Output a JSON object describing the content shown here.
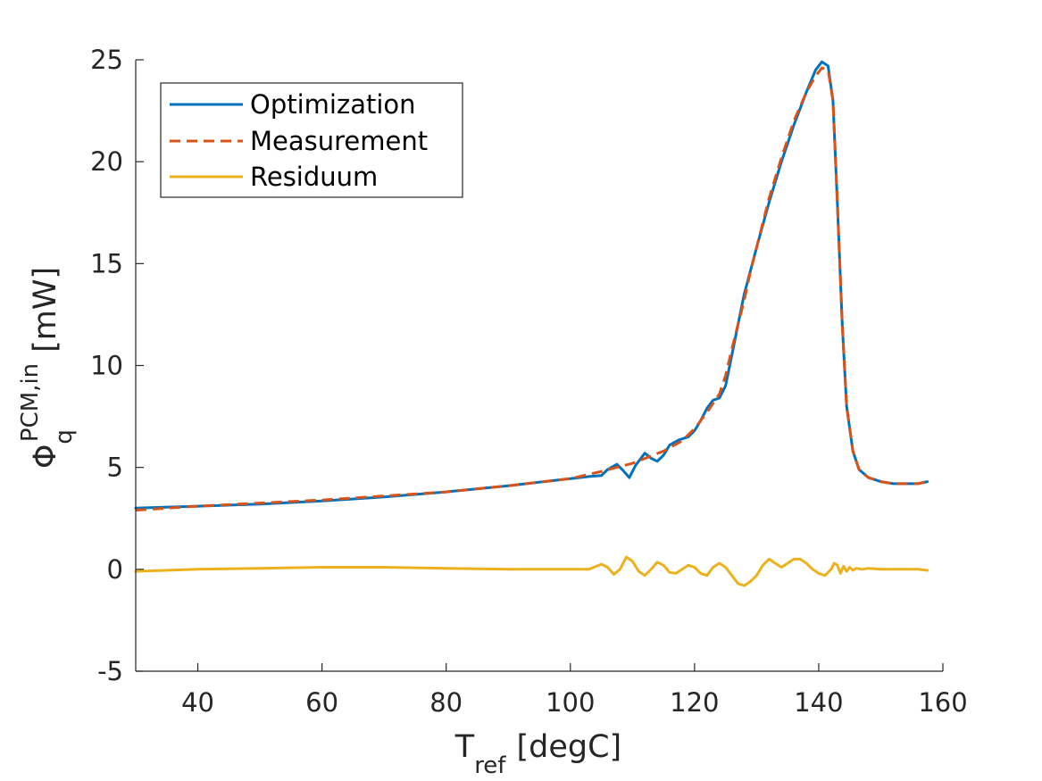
{
  "chart_data": {
    "type": "line",
    "xlabel": {
      "main": "T",
      "sub": "ref",
      "unit": "[degC]"
    },
    "ylabel": {
      "main": "Φ",
      "sub": "q",
      "sup": "PCM,in",
      "unit": "[mW]"
    },
    "xlim": [
      30,
      160
    ],
    "ylim": [
      -5,
      25
    ],
    "xticks": [
      "40",
      "60",
      "80",
      "100",
      "120",
      "140",
      "160"
    ],
    "yticks": [
      "-5",
      "0",
      "5",
      "10",
      "15",
      "20",
      "25"
    ],
    "legend_position": "top-left",
    "series": [
      {
        "name": "Optimization",
        "color": "#0072BD",
        "style": "solid",
        "points": [
          [
            30,
            3.0
          ],
          [
            40,
            3.1
          ],
          [
            50,
            3.2
          ],
          [
            60,
            3.35
          ],
          [
            70,
            3.55
          ],
          [
            80,
            3.8
          ],
          [
            90,
            4.1
          ],
          [
            100,
            4.45
          ],
          [
            103,
            4.55
          ],
          [
            105,
            4.6
          ],
          [
            106,
            4.9
          ],
          [
            107.5,
            5.15
          ],
          [
            108.5,
            4.85
          ],
          [
            109.5,
            4.5
          ],
          [
            110.5,
            5.1
          ],
          [
            112,
            5.7
          ],
          [
            113,
            5.45
          ],
          [
            114,
            5.3
          ],
          [
            115,
            5.6
          ],
          [
            116,
            6.1
          ],
          [
            117.5,
            6.35
          ],
          [
            119,
            6.5
          ],
          [
            120,
            6.8
          ],
          [
            121,
            7.3
          ],
          [
            122,
            7.9
          ],
          [
            123,
            8.3
          ],
          [
            124,
            8.4
          ],
          [
            125,
            9.0
          ],
          [
            126,
            10.5
          ],
          [
            127,
            12.0
          ],
          [
            128,
            13.5
          ],
          [
            130,
            15.8
          ],
          [
            132,
            18.0
          ],
          [
            134,
            20.0
          ],
          [
            136,
            21.8
          ],
          [
            138,
            23.4
          ],
          [
            139.5,
            24.5
          ],
          [
            140.5,
            24.9
          ],
          [
            141.5,
            24.7
          ],
          [
            142.3,
            23.0
          ],
          [
            143,
            18.0
          ],
          [
            143.8,
            12.0
          ],
          [
            144.5,
            8.0
          ],
          [
            145.5,
            5.8
          ],
          [
            146.5,
            4.9
          ],
          [
            148,
            4.5
          ],
          [
            150,
            4.3
          ],
          [
            152,
            4.2
          ],
          [
            154,
            4.2
          ],
          [
            156,
            4.2
          ],
          [
            157.5,
            4.3
          ]
        ]
      },
      {
        "name": "Measurement",
        "color": "#D95319",
        "style": "dashed",
        "points": [
          [
            30,
            2.9
          ],
          [
            40,
            3.1
          ],
          [
            50,
            3.25
          ],
          [
            60,
            3.4
          ],
          [
            70,
            3.6
          ],
          [
            80,
            3.8
          ],
          [
            90,
            4.1
          ],
          [
            100,
            4.45
          ],
          [
            105,
            4.8
          ],
          [
            110,
            5.2
          ],
          [
            115,
            5.8
          ],
          [
            118,
            6.3
          ],
          [
            120,
            6.9
          ],
          [
            122,
            7.7
          ],
          [
            124,
            8.6
          ],
          [
            125,
            9.5
          ],
          [
            126,
            10.8
          ],
          [
            127,
            12.0
          ],
          [
            128,
            13.2
          ],
          [
            129,
            14.6
          ],
          [
            130,
            15.8
          ],
          [
            132,
            18.2
          ],
          [
            134,
            20.2
          ],
          [
            136,
            22.0
          ],
          [
            138,
            23.4
          ],
          [
            139.5,
            24.2
          ],
          [
            140.5,
            24.6
          ],
          [
            141.5,
            24.5
          ],
          [
            142.3,
            23.0
          ],
          [
            143,
            18.0
          ],
          [
            143.8,
            12.0
          ],
          [
            144.5,
            8.0
          ],
          [
            145.5,
            5.8
          ],
          [
            146.5,
            4.9
          ],
          [
            148,
            4.5
          ],
          [
            150,
            4.3
          ],
          [
            152,
            4.2
          ],
          [
            154,
            4.2
          ],
          [
            156,
            4.2
          ],
          [
            157.5,
            4.3
          ]
        ]
      },
      {
        "name": "Residuum",
        "color": "#EDB120",
        "style": "solid",
        "points": [
          [
            30,
            -0.1
          ],
          [
            40,
            0.0
          ],
          [
            50,
            0.05
          ],
          [
            60,
            0.1
          ],
          [
            70,
            0.1
          ],
          [
            80,
            0.05
          ],
          [
            90,
            0.0
          ],
          [
            100,
            0.0
          ],
          [
            103,
            0.0
          ],
          [
            105,
            0.25
          ],
          [
            106,
            0.1
          ],
          [
            107,
            -0.25
          ],
          [
            108,
            0.0
          ],
          [
            109,
            0.6
          ],
          [
            110,
            0.4
          ],
          [
            111,
            -0.1
          ],
          [
            112,
            -0.3
          ],
          [
            113,
            0.0
          ],
          [
            114,
            0.35
          ],
          [
            115,
            0.2
          ],
          [
            116,
            -0.15
          ],
          [
            117,
            -0.2
          ],
          [
            118,
            0.0
          ],
          [
            119,
            0.2
          ],
          [
            120,
            0.1
          ],
          [
            121,
            -0.2
          ],
          [
            122,
            -0.3
          ],
          [
            123,
            0.1
          ],
          [
            124,
            0.3
          ],
          [
            125,
            0.1
          ],
          [
            126,
            -0.3
          ],
          [
            127,
            -0.7
          ],
          [
            128,
            -0.8
          ],
          [
            129,
            -0.6
          ],
          [
            130,
            -0.3
          ],
          [
            131,
            0.2
          ],
          [
            132,
            0.5
          ],
          [
            133,
            0.3
          ],
          [
            134,
            0.1
          ],
          [
            135,
            0.3
          ],
          [
            136,
            0.5
          ],
          [
            137,
            0.5
          ],
          [
            138,
            0.3
          ],
          [
            139,
            0.0
          ],
          [
            140,
            -0.2
          ],
          [
            141,
            -0.3
          ],
          [
            142,
            0.0
          ],
          [
            142.5,
            0.3
          ],
          [
            143,
            0.2
          ],
          [
            143.5,
            -0.2
          ],
          [
            144,
            0.15
          ],
          [
            144.5,
            -0.1
          ],
          [
            145,
            0.1
          ],
          [
            145.5,
            -0.05
          ],
          [
            146,
            0.05
          ],
          [
            147,
            0.0
          ],
          [
            148,
            0.05
          ],
          [
            150,
            0.0
          ],
          [
            152,
            0.0
          ],
          [
            154,
            0.0
          ],
          [
            156,
            0.0
          ],
          [
            157.5,
            -0.05
          ]
        ]
      }
    ]
  }
}
